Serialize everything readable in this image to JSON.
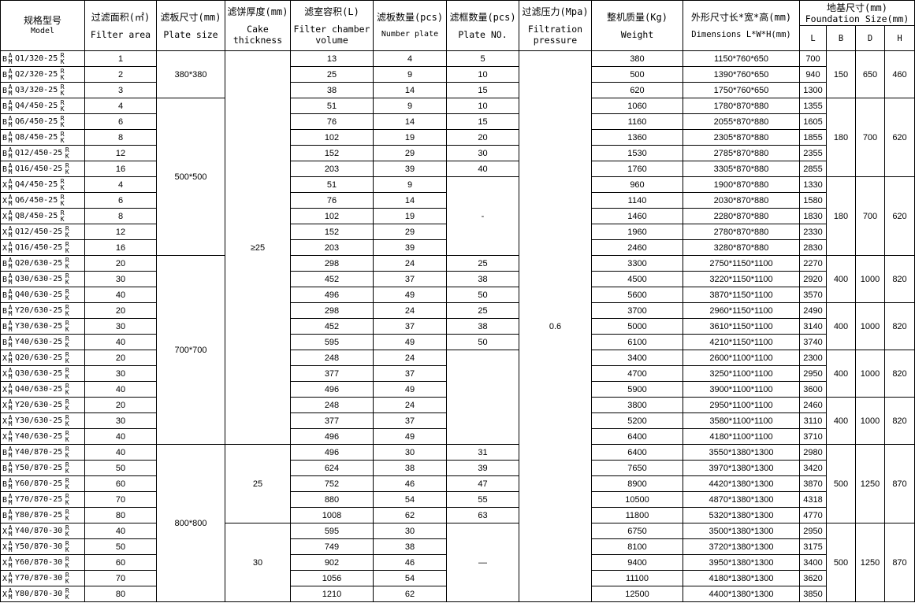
{
  "header": {
    "model": {
      "zh": "规格型号",
      "en": "Model"
    },
    "area": {
      "zh": "过滤面积(㎡)",
      "en": "Filter area"
    },
    "plate_size": {
      "zh": "滤板尺寸(mm)",
      "en": "Plate size"
    },
    "cake": {
      "zh": "滤饼厚度(mm)",
      "en": "Cake thickness"
    },
    "volume": {
      "zh": "滤室容积(L)",
      "en": "Filter chamber volume"
    },
    "number_plate": {
      "zh": "滤板数量(pcs)",
      "en": "Number plate"
    },
    "plate_no": {
      "zh": "滤框数量(pcs)",
      "en": "Plate NO."
    },
    "pressure": {
      "zh": "过滤压力(Mpa)",
      "en": "Filtration pressure"
    },
    "weight": {
      "zh": "整机质量(Kg)",
      "en": "Weight"
    },
    "dimensions": {
      "zh": "外形尺寸长*宽*高(mm)",
      "en": "Dimensions L*W*H(mm)"
    },
    "foundation": {
      "zh": "地基尺寸(mm)",
      "en": "Foundation Size(mm)",
      "cols": [
        "L",
        "B",
        "D",
        "H"
      ]
    }
  },
  "model_stack": {
    "left_top": "A",
    "left_bottom": "M",
    "right_top": "R",
    "right_bottom": "K"
  },
  "rows": [
    {
      "p": "B",
      "code": "Q1/320-25",
      "area": "1",
      "volume": "13",
      "plates": "4",
      "weight": "380",
      "dims": "1150*760*650",
      "L": "700"
    },
    {
      "p": "B",
      "code": "Q2/320-25",
      "area": "2",
      "volume": "25",
      "plates": "9",
      "weight": "500",
      "dims": "1390*760*650",
      "L": "940"
    },
    {
      "p": "B",
      "code": "Q3/320-25",
      "area": "3",
      "volume": "38",
      "plates": "14",
      "weight": "620",
      "dims": "1750*760*650",
      "L": "1300"
    },
    {
      "p": "B",
      "code": "Q4/450-25",
      "area": "4",
      "volume": "51",
      "plates": "9",
      "weight": "1060",
      "dims": "1780*870*880",
      "L": "1355"
    },
    {
      "p": "B",
      "code": "Q6/450-25",
      "area": "6",
      "volume": "76",
      "plates": "14",
      "weight": "1160",
      "dims": "2055*870*880",
      "L": "1605"
    },
    {
      "p": "B",
      "code": "Q8/450-25",
      "area": "8",
      "volume": "102",
      "plates": "19",
      "weight": "1360",
      "dims": "2305*870*880",
      "L": "1855"
    },
    {
      "p": "B",
      "code": "Q12/450-25",
      "area": "12",
      "volume": "152",
      "plates": "29",
      "weight": "1530",
      "dims": "2785*870*880",
      "L": "2355"
    },
    {
      "p": "B",
      "code": "Q16/450-25",
      "area": "16",
      "volume": "203",
      "plates": "39",
      "weight": "1760",
      "dims": "3305*870*880",
      "L": "2855"
    },
    {
      "p": "X",
      "code": "Q4/450-25",
      "area": "4",
      "volume": "51",
      "plates": "9",
      "weight": "960",
      "dims": "1900*870*880",
      "L": "1330"
    },
    {
      "p": "X",
      "code": "Q6/450-25",
      "area": "6",
      "volume": "76",
      "plates": "14",
      "weight": "1140",
      "dims": "2030*870*880",
      "L": "1580"
    },
    {
      "p": "X",
      "code": "Q8/450-25",
      "area": "8",
      "volume": "102",
      "plates": "19",
      "weight": "1460",
      "dims": "2280*870*880",
      "L": "1830"
    },
    {
      "p": "X",
      "code": "Q12/450-25",
      "area": "12",
      "volume": "152",
      "plates": "29",
      "weight": "1960",
      "dims": "2780*870*880",
      "L": "2330"
    },
    {
      "p": "X",
      "code": "Q16/450-25",
      "area": "16",
      "volume": "203",
      "plates": "39",
      "weight": "2460",
      "dims": "3280*870*880",
      "L": "2830"
    },
    {
      "p": "B",
      "code": "Q20/630-25",
      "area": "20",
      "volume": "298",
      "plates": "24",
      "weight": "3300",
      "dims": "2750*1150*1100",
      "L": "2270"
    },
    {
      "p": "B",
      "code": "Q30/630-25",
      "area": "30",
      "volume": "452",
      "plates": "37",
      "weight": "4500",
      "dims": "3220*1150*1100",
      "L": "2920"
    },
    {
      "p": "B",
      "code": "Q40/630-25",
      "area": "40",
      "volume": "496",
      "plates": "49",
      "weight": "5600",
      "dims": "3870*1150*1100",
      "L": "3570"
    },
    {
      "p": "B",
      "code": "Y20/630-25",
      "area": "20",
      "volume": "298",
      "plates": "24",
      "weight": "3700",
      "dims": "2960*1150*1100",
      "L": "2490"
    },
    {
      "p": "B",
      "code": "Y30/630-25",
      "area": "30",
      "volume": "452",
      "plates": "37",
      "weight": "5000",
      "dims": "3610*1150*1100",
      "L": "3140"
    },
    {
      "p": "B",
      "code": "Y40/630-25",
      "area": "40",
      "volume": "595",
      "plates": "49",
      "weight": "6100",
      "dims": "4210*1150*1100",
      "L": "3740"
    },
    {
      "p": "X",
      "code": "Q20/630-25",
      "area": "20",
      "volume": "248",
      "plates": "24",
      "weight": "3400",
      "dims": "2600*1100*1100",
      "L": "2300"
    },
    {
      "p": "X",
      "code": "Q30/630-25",
      "area": "30",
      "volume": "377",
      "plates": "37",
      "weight": "4700",
      "dims": "3250*1100*1100",
      "L": "2950"
    },
    {
      "p": "X",
      "code": "Q40/630-25",
      "area": "40",
      "volume": "496",
      "plates": "49",
      "weight": "5900",
      "dims": "3900*1100*1100",
      "L": "3600"
    },
    {
      "p": "X",
      "code": "Y20/630-25",
      "area": "20",
      "volume": "248",
      "plates": "24",
      "weight": "3800",
      "dims": "2950*1100*1100",
      "L": "2460"
    },
    {
      "p": "X",
      "code": "Y30/630-25",
      "area": "30",
      "volume": "377",
      "plates": "37",
      "weight": "5200",
      "dims": "3580*1100*1100",
      "L": "3110"
    },
    {
      "p": "X",
      "code": "Y40/630-25",
      "area": "40",
      "volume": "496",
      "plates": "49",
      "weight": "6400",
      "dims": "4180*1100*1100",
      "L": "3710"
    },
    {
      "p": "B",
      "code": "Y40/870-25",
      "area": "40",
      "volume": "496",
      "plates": "30",
      "weight": "6400",
      "dims": "3550*1380*1300",
      "L": "2980"
    },
    {
      "p": "B",
      "code": "Y50/870-25",
      "area": "50",
      "volume": "624",
      "plates": "38",
      "weight": "7650",
      "dims": "3970*1380*1300",
      "L": "3420"
    },
    {
      "p": "B",
      "code": "Y60/870-25",
      "area": "60",
      "volume": "752",
      "plates": "46",
      "weight": "8900",
      "dims": "4420*1380*1300",
      "L": "3870"
    },
    {
      "p": "B",
      "code": "Y70/870-25",
      "area": "70",
      "volume": "880",
      "plates": "54",
      "weight": "10500",
      "dims": "4870*1380*1300",
      "L": "4318"
    },
    {
      "p": "B",
      "code": "Y80/870-25",
      "area": "80",
      "volume": "1008",
      "plates": "62",
      "weight": "11800",
      "dims": "5320*1380*1300",
      "L": "4770"
    },
    {
      "p": "X",
      "code": "Y40/870-30",
      "area": "40",
      "volume": "595",
      "plates": "30",
      "weight": "6750",
      "dims": "3500*1380*1300",
      "L": "2950"
    },
    {
      "p": "X",
      "code": "Y50/870-30",
      "area": "50",
      "volume": "749",
      "plates": "38",
      "weight": "8100",
      "dims": "3720*1380*1300",
      "L": "3175"
    },
    {
      "p": "X",
      "code": "Y60/870-30",
      "area": "60",
      "volume": "902",
      "plates": "46",
      "weight": "9400",
      "dims": "3950*1380*1300",
      "L": "3400"
    },
    {
      "p": "X",
      "code": "Y70/870-30",
      "area": "70",
      "volume": "1056",
      "plates": "54",
      "weight": "11100",
      "dims": "4180*1380*1300",
      "L": "3620"
    },
    {
      "p": "X",
      "code": "Y80/870-30",
      "area": "80",
      "volume": "1210",
      "plates": "62",
      "weight": "12500",
      "dims": "4400*1380*1300",
      "L": "3850"
    }
  ],
  "plate_size_groups": [
    "380*380",
    "500*500",
    "700*700",
    "800*800"
  ],
  "cake_groups": [
    "≥25",
    "25",
    "30"
  ],
  "plate_no_groups": [
    "5",
    "10",
    "15",
    "10",
    "15",
    "20",
    "30",
    "40",
    "-",
    "25",
    "38",
    "50",
    "25",
    "38",
    "50",
    "",
    "31",
    "39",
    "47",
    "55",
    "63",
    "—"
  ],
  "pressure": "0.6",
  "foundation_groups": [
    {
      "B": "150",
      "D": "650",
      "H": "460"
    },
    {
      "B": "180",
      "D": "700",
      "H": "620"
    },
    {
      "B": "180",
      "D": "700",
      "H": "620"
    },
    {
      "B": "400",
      "D": "1000",
      "H": "820"
    },
    {
      "B": "400",
      "D": "1000",
      "H": "820"
    },
    {
      "B": "400",
      "D": "1000",
      "H": "820"
    },
    {
      "B": "400",
      "D": "1000",
      "H": "820"
    },
    {
      "B": "500",
      "D": "1250",
      "H": "870"
    },
    {
      "B": "500",
      "D": "1250",
      "H": "870"
    }
  ]
}
